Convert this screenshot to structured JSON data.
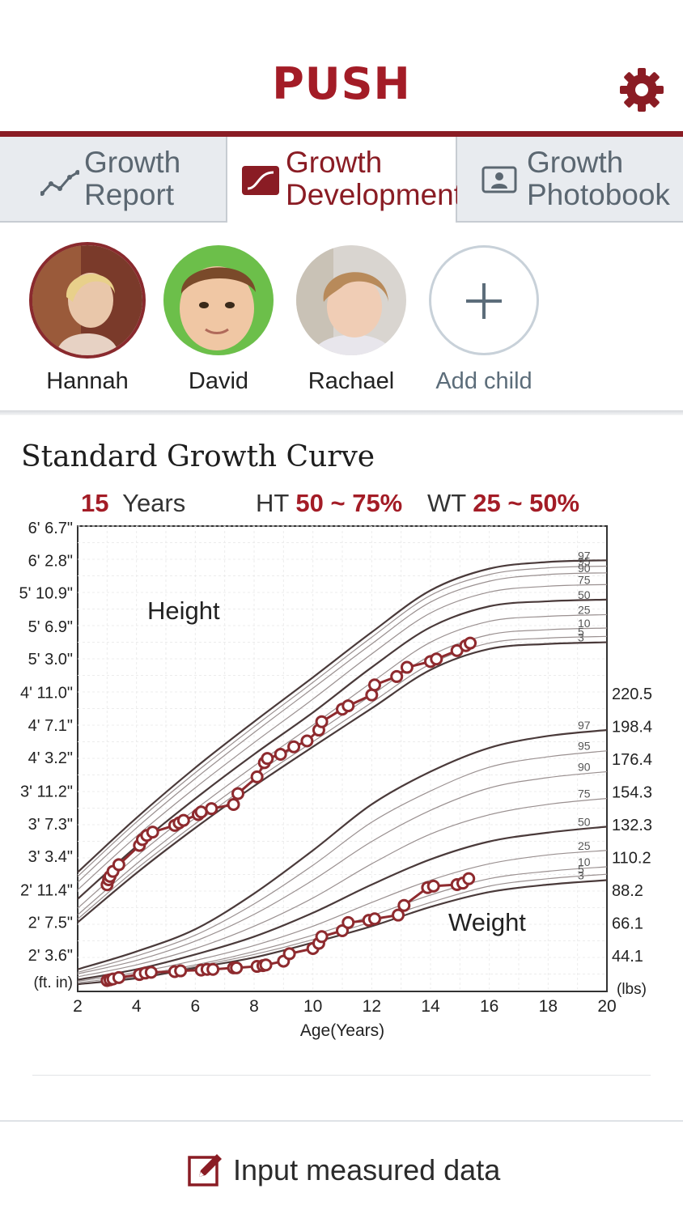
{
  "header": {
    "title": "PUSH"
  },
  "tabs": [
    {
      "line1": "Growth",
      "line2": "Report",
      "icon": "line-chart-icon",
      "active": false
    },
    {
      "line1": "Growth",
      "line2": "Development",
      "icon": "growth-curve-icon",
      "active": true
    },
    {
      "line1": "Growth",
      "line2": "Photobook",
      "icon": "photo-portrait-icon",
      "active": false
    }
  ],
  "children": [
    {
      "name": "Hannah",
      "selected": true
    },
    {
      "name": "David",
      "selected": false
    },
    {
      "name": "Rachael",
      "selected": false
    }
  ],
  "add_child_label": "Add child",
  "chart": {
    "title": "Standard Growth Curve",
    "age_value": "15",
    "age_unit": "Years",
    "ht_label": "HT",
    "ht_range": "50 ~ 75%",
    "wt_label": "WT",
    "wt_range": "25 ~ 50%"
  },
  "footer": {
    "input_label": "Input measured data"
  },
  "colors": {
    "brand": "#a31c26",
    "series": "#8e2a2e",
    "curve_dark": "#4a3a3a",
    "curve_light": "#9a9090"
  },
  "chart_data": {
    "type": "line",
    "xlabel": "Age(Years)",
    "xlim": [
      2,
      20
    ],
    "x_ticks": [
      2,
      4,
      6,
      8,
      10,
      12,
      14,
      16,
      18,
      20
    ],
    "height_axis": {
      "unit_label": "(ft. in)",
      "ticks": [
        "6' 6.7\"",
        "6' 2.8\"",
        "5' 10.9\"",
        "5' 6.9\"",
        "5' 3.0\"",
        "4' 11.0\"",
        "4' 7.1\"",
        "4' 3.2\"",
        "3' 11.2\"",
        "3' 7.3\"",
        "3' 3.4\"",
        "2' 11.4\"",
        "2' 7.5\"",
        "2' 3.6\""
      ],
      "tick_inches": [
        78.7,
        74.8,
        70.9,
        66.9,
        63.0,
        59.0,
        55.1,
        51.2,
        47.2,
        43.3,
        39.4,
        35.4,
        31.5,
        27.6
      ]
    },
    "weight_axis": {
      "unit_label": "(lbs)",
      "ticks": [
        "220.5",
        "198.4",
        "176.4",
        "154.3",
        "132.3",
        "110.2",
        "88.2",
        "66.1",
        "44.1"
      ]
    },
    "labels": {
      "height": "Height",
      "weight": "Weight"
    },
    "percentiles": [
      "97",
      "95",
      "90",
      "75",
      "50",
      "25",
      "10",
      "5",
      "3"
    ],
    "height_percentile_curves": {
      "x": [
        2,
        4,
        6,
        8,
        10,
        12,
        14,
        16,
        18,
        20
      ],
      "series": [
        {
          "name": "97",
          "values": [
            37.5,
            44.0,
            50.0,
            55.5,
            60.8,
            66.2,
            71.2,
            73.8,
            74.6,
            74.8
          ]
        },
        {
          "name": "95",
          "values": [
            37.0,
            43.5,
            49.4,
            54.9,
            60.2,
            65.6,
            70.6,
            73.1,
            73.9,
            74.1
          ]
        },
        {
          "name": "90",
          "values": [
            36.3,
            42.8,
            48.7,
            54.2,
            59.5,
            64.8,
            69.8,
            72.3,
            73.1,
            73.3
          ]
        },
        {
          "name": "75",
          "values": [
            35.4,
            41.8,
            47.6,
            53.0,
            58.2,
            63.6,
            68.5,
            71.0,
            71.7,
            71.9
          ]
        },
        {
          "name": "50",
          "values": [
            34.3,
            40.6,
            46.3,
            51.6,
            56.6,
            62.0,
            66.8,
            69.3,
            69.9,
            70.1
          ]
        },
        {
          "name": "25",
          "values": [
            33.2,
            39.4,
            45.0,
            50.2,
            55.1,
            60.2,
            65.0,
            67.5,
            68.1,
            68.3
          ]
        },
        {
          "name": "10",
          "values": [
            32.4,
            38.5,
            44.0,
            49.1,
            53.9,
            58.7,
            63.4,
            65.9,
            66.5,
            66.7
          ]
        },
        {
          "name": "5",
          "values": [
            31.9,
            37.9,
            43.3,
            48.4,
            53.1,
            57.8,
            62.4,
            64.9,
            65.5,
            65.7
          ]
        },
        {
          "name": "3",
          "values": [
            31.5,
            37.4,
            42.8,
            47.8,
            52.5,
            57.1,
            61.7,
            64.2,
            64.8,
            65.0
          ]
        }
      ]
    },
    "weight_percentile_curves": {
      "x": [
        2,
        4,
        6,
        8,
        10,
        12,
        14,
        16,
        18,
        20
      ],
      "series": [
        {
          "name": "97",
          "values": [
            35,
            47,
            62,
            86,
            115,
            146,
            168,
            184,
            192,
            196
          ]
        },
        {
          "name": "95",
          "values": [
            33,
            44,
            58,
            79,
            105,
            134,
            155,
            171,
            178,
            182
          ]
        },
        {
          "name": "90",
          "values": [
            32,
            41,
            54,
            72,
            95,
            121,
            142,
            157,
            164,
            168
          ]
        },
        {
          "name": "75",
          "values": [
            30,
            38,
            49,
            64,
            83,
            106,
            126,
            139,
            146,
            150
          ]
        },
        {
          "name": "50",
          "values": [
            28,
            35,
            45,
            57,
            73,
            92,
            109,
            121,
            127,
            131
          ]
        },
        {
          "name": "25",
          "values": [
            27,
            33,
            41,
            51,
            64,
            80,
            95,
            106,
            112,
            115
          ]
        },
        {
          "name": "10",
          "values": [
            26,
            31,
            38,
            47,
            58,
            71,
            85,
            96,
            101,
            104
          ]
        },
        {
          "name": "5",
          "values": [
            25,
            30,
            37,
            45,
            55,
            67,
            80,
            91,
            96,
            99
          ]
        },
        {
          "name": "3",
          "values": [
            25,
            29,
            36,
            43,
            53,
            64,
            77,
            87,
            92,
            95
          ]
        }
      ]
    },
    "height_measurements": {
      "x": [
        3.0,
        3.05,
        3.1,
        3.2,
        3.4,
        4.1,
        4.2,
        4.35,
        4.55,
        5.3,
        5.45,
        5.6,
        6.1,
        6.2,
        6.55,
        7.3,
        7.45,
        8.1,
        8.35,
        8.45,
        8.9,
        9.35,
        9.8,
        10.2,
        10.3,
        11.0,
        11.2,
        12.0,
        12.1,
        12.85,
        13.2,
        14.0,
        14.2,
        14.9,
        15.2,
        15.35
      ],
      "values": [
        36.0,
        36.6,
        37.0,
        37.6,
        38.4,
        40.7,
        41.4,
        41.9,
        42.3,
        43.1,
        43.4,
        43.7,
        44.4,
        44.7,
        45.1,
        45.6,
        46.9,
        48.9,
        50.6,
        51.1,
        51.6,
        52.5,
        53.2,
        54.5,
        55.5,
        57.0,
        57.4,
        58.7,
        59.9,
        60.9,
        62.0,
        62.7,
        63.0,
        64.0,
        64.6,
        64.9
      ]
    },
    "weight_measurements": {
      "x": [
        3.0,
        3.1,
        3.2,
        3.4,
        4.1,
        4.3,
        4.5,
        5.3,
        5.5,
        6.2,
        6.4,
        6.6,
        7.3,
        7.4,
        8.1,
        8.3,
        8.4,
        9.0,
        9.2,
        10.0,
        10.2,
        10.3,
        11.0,
        11.2,
        11.9,
        12.1,
        12.9,
        13.1,
        13.9,
        14.1,
        14.9,
        15.1,
        15.3
      ],
      "values": [
        27.5,
        28.0,
        28.5,
        29.5,
        31.5,
        32.5,
        33.0,
        33.5,
        34.0,
        34.5,
        35.0,
        35.0,
        36.0,
        36.0,
        37.0,
        37.5,
        38.0,
        40.5,
        45.5,
        49.0,
        52.5,
        57.0,
        61.0,
        66.5,
        68.0,
        69.0,
        71.5,
        78.0,
        90.0,
        91.0,
        92.0,
        93.0,
        96.0
      ]
    }
  }
}
